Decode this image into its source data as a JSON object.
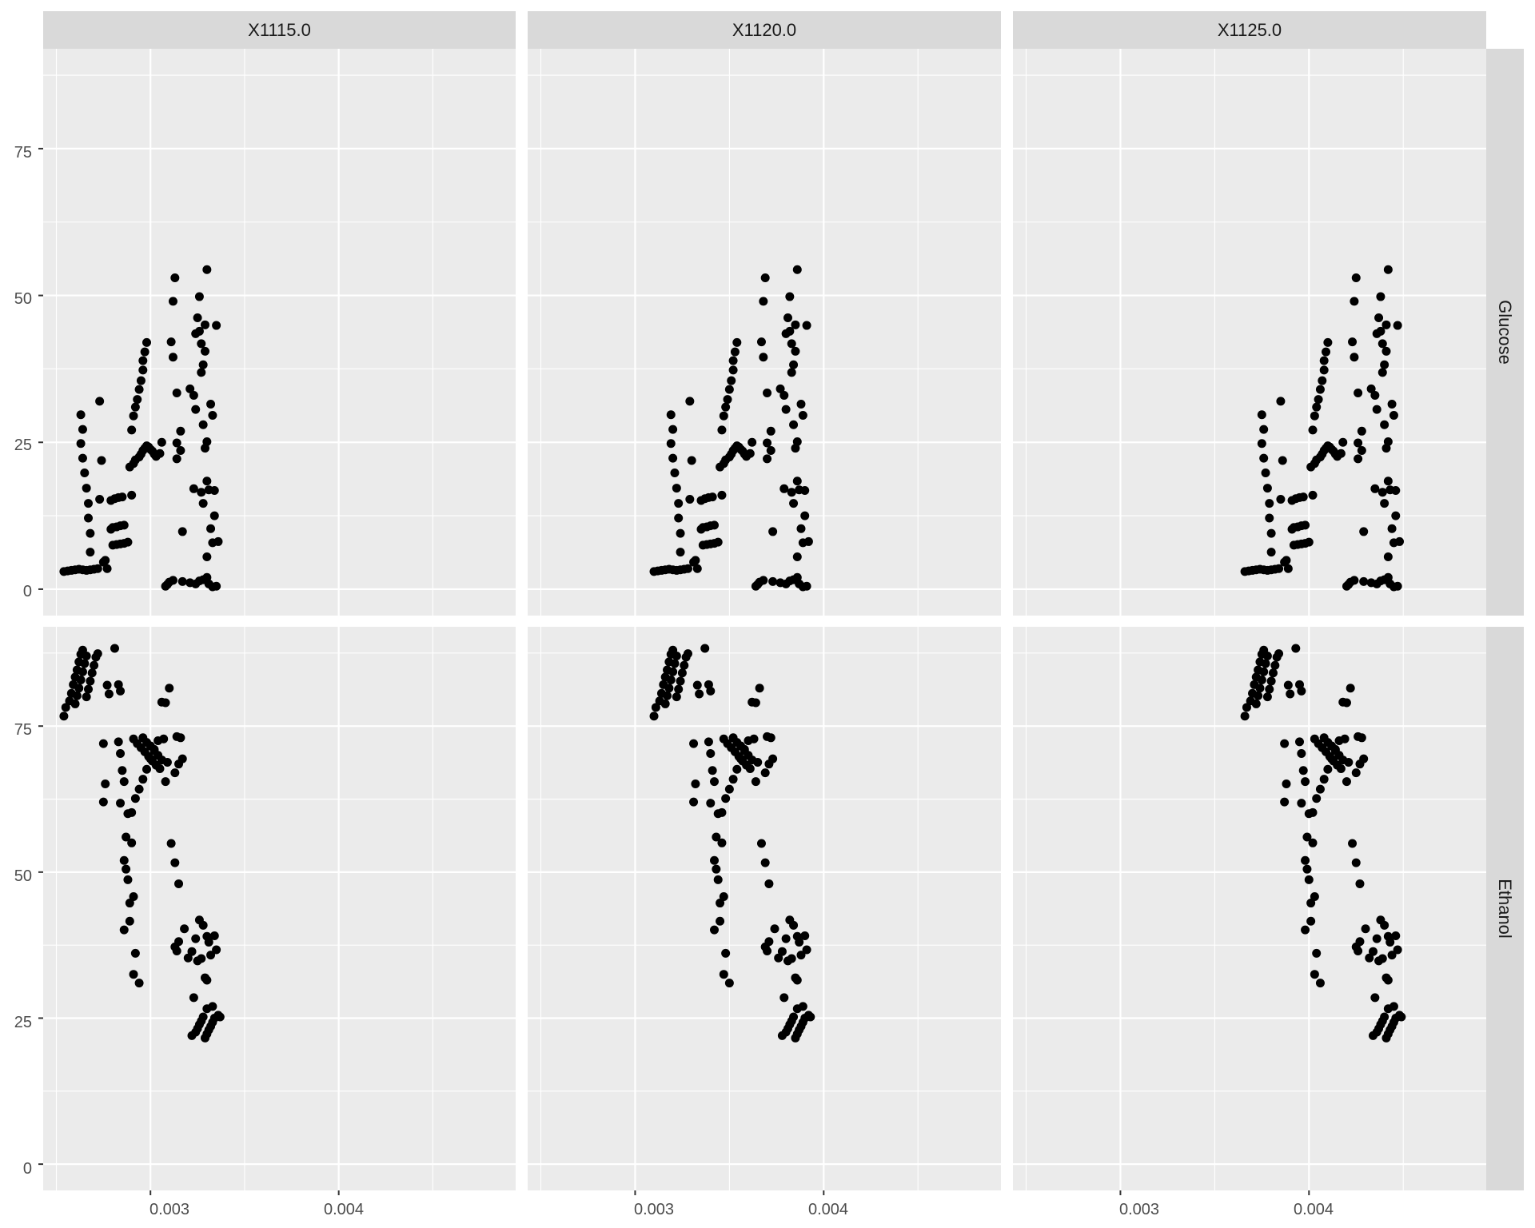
{
  "chart_data": {
    "type": "scatter",
    "facets": {
      "columns": [
        "X1115.0",
        "X1120.0",
        "X1125.0"
      ],
      "rows": [
        "Glucose",
        "Ethanol"
      ],
      "column_offsets": [
        0,
        0.00056,
        0.00112
      ]
    },
    "xlim": [
      0.00243,
      0.00494
    ],
    "ylim": [
      -4.5,
      92
    ],
    "x_ticks": [
      0.003,
      0.004
    ],
    "x_tick_labels": [
      "0.003",
      "0.004"
    ],
    "y_ticks": [
      0,
      25,
      50,
      75
    ],
    "y_tick_labels": [
      "0",
      "25",
      "50",
      "75"
    ],
    "grid": true,
    "point_color": "#000000",
    "series": [
      {
        "facet_row": "Glucose",
        "points": [
          [
            0.00254,
            3.0
          ],
          [
            0.00256,
            3.1
          ],
          [
            0.00258,
            3.2
          ],
          [
            0.0026,
            3.3
          ],
          [
            0.00262,
            3.4
          ],
          [
            0.00264,
            3.3
          ],
          [
            0.00266,
            3.2
          ],
          [
            0.00268,
            3.3
          ],
          [
            0.0027,
            3.4
          ],
          [
            0.00272,
            3.5
          ],
          [
            0.00263,
            29.7
          ],
          [
            0.00264,
            27.2
          ],
          [
            0.00263,
            24.8
          ],
          [
            0.00264,
            22.3
          ],
          [
            0.00265,
            19.8
          ],
          [
            0.00266,
            17.2
          ],
          [
            0.00267,
            14.6
          ],
          [
            0.00267,
            12.1
          ],
          [
            0.00268,
            9.5
          ],
          [
            0.00268,
            6.3
          ],
          [
            0.00273,
            32.0
          ],
          [
            0.00274,
            21.9
          ],
          [
            0.00273,
            15.3
          ],
          [
            0.00276,
            4.9
          ],
          [
            0.00275,
            4.6
          ],
          [
            0.00277,
            3.5
          ],
          [
            0.00279,
            10.2
          ],
          [
            0.0028,
            10.5
          ],
          [
            0.00282,
            10.6
          ],
          [
            0.00284,
            10.8
          ],
          [
            0.00286,
            10.9
          ],
          [
            0.00279,
            15.1
          ],
          [
            0.00281,
            15.4
          ],
          [
            0.00283,
            15.6
          ],
          [
            0.00285,
            15.7
          ],
          [
            0.0029,
            16.0
          ],
          [
            0.0028,
            7.5
          ],
          [
            0.00282,
            7.6
          ],
          [
            0.00284,
            7.7
          ],
          [
            0.00286,
            7.8
          ],
          [
            0.00288,
            8.0
          ],
          [
            0.00289,
            20.8
          ],
          [
            0.00291,
            21.4
          ],
          [
            0.00292,
            22.0
          ],
          [
            0.00294,
            22.5
          ],
          [
            0.00295,
            23.0
          ],
          [
            0.00296,
            23.6
          ],
          [
            0.00297,
            24.0
          ],
          [
            0.00298,
            24.4
          ],
          [
            0.00299,
            24.2
          ],
          [
            0.003,
            23.8
          ],
          [
            0.00301,
            23.5
          ],
          [
            0.00302,
            23.0
          ],
          [
            0.00303,
            22.6
          ],
          [
            0.00305,
            23.1
          ],
          [
            0.00306,
            25.0
          ],
          [
            0.0029,
            27.1
          ],
          [
            0.00291,
            29.5
          ],
          [
            0.00292,
            31.0
          ],
          [
            0.00293,
            32.3
          ],
          [
            0.00294,
            34.0
          ],
          [
            0.00295,
            35.5
          ],
          [
            0.00296,
            37.3
          ],
          [
            0.00296,
            38.9
          ],
          [
            0.00297,
            40.4
          ],
          [
            0.00298,
            42.0
          ],
          [
            0.00308,
            0.5
          ],
          [
            0.00309,
            0.8
          ],
          [
            0.0031,
            1.2
          ],
          [
            0.00312,
            1.5
          ],
          [
            0.00317,
            1.3
          ],
          [
            0.00321,
            1.1
          ],
          [
            0.00324,
            0.9
          ],
          [
            0.00326,
            1.4
          ],
          [
            0.00328,
            1.6
          ],
          [
            0.0033,
            2.0
          ],
          [
            0.00331,
            0.9
          ],
          [
            0.00333,
            0.4
          ],
          [
            0.00335,
            0.5
          ],
          [
            0.00313,
            53.0
          ],
          [
            0.00312,
            49.0
          ],
          [
            0.00311,
            42.1
          ],
          [
            0.00312,
            39.5
          ],
          [
            0.00314,
            33.4
          ],
          [
            0.00316,
            26.9
          ],
          [
            0.00314,
            24.9
          ],
          [
            0.00316,
            23.6
          ],
          [
            0.00314,
            22.2
          ],
          [
            0.00317,
            9.8
          ],
          [
            0.00321,
            34.1
          ],
          [
            0.00323,
            33.0
          ],
          [
            0.00324,
            43.5
          ],
          [
            0.00325,
            46.2
          ],
          [
            0.00326,
            49.8
          ],
          [
            0.00324,
            30.6
          ],
          [
            0.00327,
            36.9
          ],
          [
            0.00328,
            38.2
          ],
          [
            0.00329,
            40.5
          ],
          [
            0.00327,
            41.8
          ],
          [
            0.00326,
            43.9
          ],
          [
            0.0033,
            54.4
          ],
          [
            0.00329,
            45.0
          ],
          [
            0.00328,
            28.0
          ],
          [
            0.0033,
            25.1
          ],
          [
            0.00329,
            24.0
          ],
          [
            0.00332,
            31.5
          ],
          [
            0.00333,
            29.6
          ],
          [
            0.00335,
            44.9
          ],
          [
            0.00323,
            17.1
          ],
          [
            0.00327,
            16.5
          ],
          [
            0.00328,
            14.6
          ],
          [
            0.0033,
            18.4
          ],
          [
            0.00331,
            16.9
          ],
          [
            0.00334,
            16.8
          ],
          [
            0.00334,
            12.5
          ],
          [
            0.00332,
            10.3
          ],
          [
            0.00333,
            7.9
          ],
          [
            0.00336,
            8.1
          ],
          [
            0.0033,
            5.5
          ]
        ]
      },
      {
        "facet_row": "Ethanol",
        "points": [
          [
            0.00254,
            76.7
          ],
          [
            0.00255,
            78.2
          ],
          [
            0.00257,
            79.3
          ],
          [
            0.00258,
            80.6
          ],
          [
            0.00259,
            82.1
          ],
          [
            0.0026,
            83.4
          ],
          [
            0.00261,
            84.6
          ],
          [
            0.00262,
            86.0
          ],
          [
            0.00263,
            87.3
          ],
          [
            0.00264,
            88.0
          ],
          [
            0.0026,
            78.8
          ],
          [
            0.00261,
            80.2
          ],
          [
            0.00262,
            81.5
          ],
          [
            0.00263,
            82.9
          ],
          [
            0.00264,
            84.3
          ],
          [
            0.00265,
            85.7
          ],
          [
            0.00266,
            87.0
          ],
          [
            0.00266,
            80.0
          ],
          [
            0.00267,
            81.3
          ],
          [
            0.00268,
            82.7
          ],
          [
            0.00269,
            84.1
          ],
          [
            0.0027,
            85.4
          ],
          [
            0.00271,
            86.8
          ],
          [
            0.00272,
            87.4
          ],
          [
            0.00277,
            82.0
          ],
          [
            0.00278,
            80.5
          ],
          [
            0.00281,
            88.3
          ],
          [
            0.00283,
            82.1
          ],
          [
            0.00284,
            81.0
          ],
          [
            0.00275,
            72.0
          ],
          [
            0.00276,
            65.1
          ],
          [
            0.00275,
            62.0
          ],
          [
            0.00283,
            72.3
          ],
          [
            0.00284,
            70.3
          ],
          [
            0.00285,
            67.4
          ],
          [
            0.00286,
            65.5
          ],
          [
            0.00284,
            61.8
          ],
          [
            0.00288,
            60.0
          ],
          [
            0.00287,
            56.0
          ],
          [
            0.00286,
            52.0
          ],
          [
            0.00287,
            50.5
          ],
          [
            0.00288,
            48.7
          ],
          [
            0.00286,
            40.1
          ],
          [
            0.00289,
            44.7
          ],
          [
            0.00291,
            45.8
          ],
          [
            0.0029,
            55.0
          ],
          [
            0.00289,
            41.6
          ],
          [
            0.00292,
            36.1
          ],
          [
            0.00291,
            32.5
          ],
          [
            0.00294,
            31.0
          ],
          [
            0.0029,
            60.2
          ],
          [
            0.00292,
            62.6
          ],
          [
            0.00294,
            64.2
          ],
          [
            0.00296,
            65.9
          ],
          [
            0.00298,
            67.6
          ],
          [
            0.003,
            69.4
          ],
          [
            0.00302,
            71.0
          ],
          [
            0.00304,
            72.5
          ],
          [
            0.00291,
            72.8
          ],
          [
            0.00293,
            72.0
          ],
          [
            0.00295,
            71.3
          ],
          [
            0.00297,
            70.6
          ],
          [
            0.00299,
            69.8
          ],
          [
            0.00301,
            69.0
          ],
          [
            0.00303,
            68.3
          ],
          [
            0.00305,
            67.7
          ],
          [
            0.00296,
            73.0
          ],
          [
            0.00298,
            72.2
          ],
          [
            0.003,
            71.6
          ],
          [
            0.00302,
            70.8
          ],
          [
            0.00304,
            70.0
          ],
          [
            0.00306,
            69.2
          ],
          [
            0.00307,
            72.8
          ],
          [
            0.00308,
            65.5
          ],
          [
            0.00309,
            68.8
          ],
          [
            0.00306,
            79.1
          ],
          [
            0.00308,
            79.0
          ],
          [
            0.0031,
            81.5
          ],
          [
            0.00313,
            67.0
          ],
          [
            0.00315,
            68.5
          ],
          [
            0.00317,
            69.4
          ],
          [
            0.00314,
            73.2
          ],
          [
            0.00316,
            73.0
          ],
          [
            0.00311,
            54.9
          ],
          [
            0.00313,
            51.6
          ],
          [
            0.00315,
            48.0
          ],
          [
            0.00313,
            37.2
          ],
          [
            0.00315,
            38.1
          ],
          [
            0.00314,
            36.5
          ],
          [
            0.00318,
            40.3
          ],
          [
            0.0032,
            35.3
          ],
          [
            0.00322,
            36.4
          ],
          [
            0.00324,
            38.6
          ],
          [
            0.00326,
            41.8
          ],
          [
            0.00325,
            34.8
          ],
          [
            0.00327,
            35.2
          ],
          [
            0.00328,
            40.9
          ],
          [
            0.0033,
            39.0
          ],
          [
            0.00331,
            38.0
          ],
          [
            0.00329,
            31.9
          ],
          [
            0.0033,
            31.5
          ],
          [
            0.00332,
            35.8
          ],
          [
            0.00334,
            39.1
          ],
          [
            0.00335,
            36.7
          ],
          [
            0.00323,
            28.5
          ],
          [
            0.00322,
            22.0
          ],
          [
            0.00324,
            22.6
          ],
          [
            0.00325,
            23.2
          ],
          [
            0.00326,
            23.9
          ],
          [
            0.00327,
            24.5
          ],
          [
            0.00328,
            25.2
          ],
          [
            0.00329,
            21.6
          ],
          [
            0.0033,
            22.3
          ],
          [
            0.00331,
            23.0
          ],
          [
            0.00332,
            23.6
          ],
          [
            0.00333,
            24.3
          ],
          [
            0.00334,
            25.0
          ],
          [
            0.0033,
            26.6
          ],
          [
            0.00333,
            27.0
          ],
          [
            0.00336,
            25.5
          ],
          [
            0.00337,
            25.2
          ]
        ]
      }
    ]
  }
}
